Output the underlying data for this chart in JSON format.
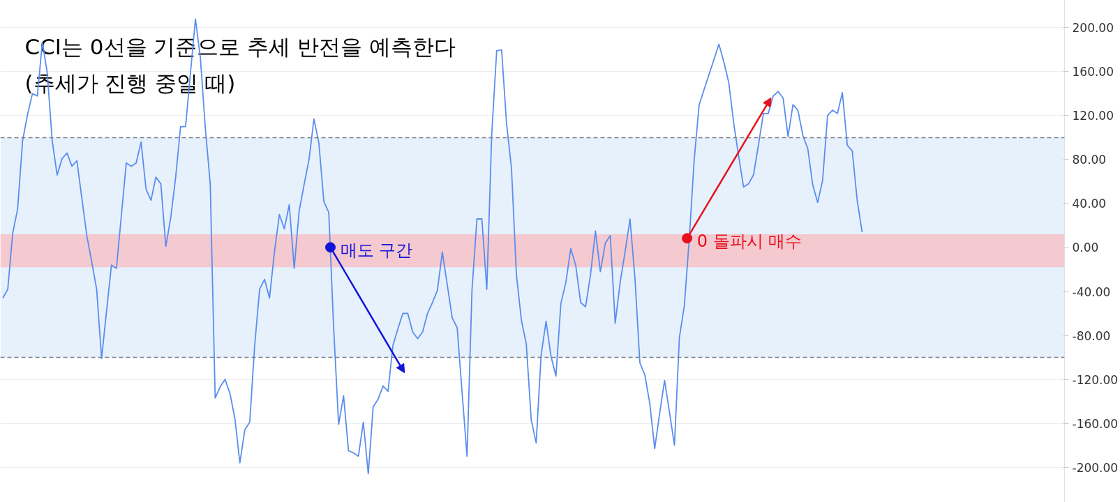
{
  "chart_data": {
    "type": "line",
    "title": "CCI는 0선을 기준으로 추세 반전을 예측한다",
    "subtitle": "(추세가 진행 중일 때)",
    "categories": [
      null,
      null,
      null,
      null,
      null,
      null,
      null,
      null,
      null,
      null,
      null,
      null,
      null,
      null,
      null,
      null,
      null,
      null,
      null,
      null,
      null,
      null,
      null,
      null,
      null,
      null,
      null,
      null,
      null,
      null,
      null,
      null,
      null,
      null,
      null,
      null,
      null,
      null,
      null,
      null,
      null,
      null,
      null,
      null,
      null,
      null,
      null,
      null,
      null,
      null,
      null,
      null,
      null,
      null,
      null,
      null,
      null,
      null,
      null,
      null,
      null,
      null,
      null,
      null,
      null,
      null,
      null,
      null,
      null,
      null,
      null,
      null,
      null,
      null,
      null,
      null,
      null,
      null,
      null,
      null,
      null,
      null,
      null,
      null,
      null,
      null,
      null,
      null,
      null,
      null,
      null,
      null,
      null,
      null,
      null,
      null,
      null,
      null,
      null,
      null,
      null,
      null,
      null,
      null,
      null,
      null,
      null,
      null,
      null,
      null,
      null,
      null,
      null,
      null,
      null,
      null,
      null,
      null,
      null,
      null,
      null,
      null,
      null,
      null,
      null,
      null,
      null,
      null,
      null,
      null,
      null,
      null,
      null,
      null,
      null,
      null,
      null,
      null,
      null,
      null,
      null,
      null,
      null,
      null,
      null,
      null,
      null,
      null,
      null,
      null,
      null,
      null,
      null,
      null,
      null,
      null,
      null,
      null,
      null,
      null,
      null,
      null,
      null,
      null,
      null,
      null,
      null,
      null,
      null,
      null,
      null,
      null,
      null,
      null,
      null
    ],
    "series": [
      {
        "color": "#5b8def",
        "values": [
          -46,
          -38,
          13,
          35,
          97,
          121,
          140,
          138,
          187,
          159,
          97,
          66,
          81,
          86,
          74,
          79,
          45,
          11,
          -13,
          -38,
          -101,
          -58,
          -16,
          -19,
          29,
          77,
          74,
          77,
          96,
          53,
          43,
          64,
          58,
          1,
          27,
          64,
          110,
          110,
          159,
          208,
          173,
          109,
          58,
          -137,
          -127,
          -120,
          -133,
          -156,
          -196,
          -166,
          -159,
          -89,
          -38,
          -29,
          -46,
          -4,
          30,
          17,
          39,
          -19,
          33,
          57,
          80,
          117,
          95,
          42,
          32,
          -74,
          -161,
          -135,
          -185,
          -187,
          -190,
          -159,
          -206,
          -145,
          -138,
          -126,
          -131,
          -89,
          -74,
          -60,
          -60,
          -77,
          -83,
          -77,
          -60,
          -50,
          -39,
          -4,
          -34,
          -64,
          -73,
          -132,
          -190,
          -39,
          26,
          26,
          -38,
          103,
          179,
          180,
          113,
          72,
          -25,
          -66,
          -88,
          -157,
          -178,
          -98,
          -67,
          -99,
          -117,
          -51,
          -32,
          -1,
          -16,
          -50,
          -54,
          -25,
          15,
          -22,
          4,
          11,
          -69,
          -32,
          -4,
          26,
          -28,
          -105,
          -116,
          -142,
          -183,
          -151,
          -121,
          -150,
          -180,
          -82,
          -53,
          8,
          80,
          130,
          null,
          null,
          null,
          185,
          169,
          150,
          113,
          83,
          55,
          58,
          66,
          93,
          122,
          122,
          138,
          142,
          136,
          101,
          130,
          125,
          102,
          90,
          57,
          41,
          61,
          120,
          125,
          122,
          141,
          93,
          88,
          43,
          14
        ]
      }
    ],
    "ylim": [
      -232,
      225
    ],
    "yticks": [
      {
        "value": -200,
        "label": "-200.00"
      },
      {
        "value": -160,
        "label": "-160.00"
      },
      {
        "value": -120,
        "label": "-120.00"
      },
      {
        "value": -80,
        "label": "-80.00"
      },
      {
        "value": -40,
        "label": "-40.00"
      },
      {
        "value": 0,
        "label": "0.00"
      },
      {
        "value": 40,
        "label": "40.00"
      },
      {
        "value": 80,
        "label": "80.00"
      },
      {
        "value": 120,
        "label": "120.00"
      },
      {
        "value": 160,
        "label": "160.00"
      },
      {
        "value": 200,
        "label": "200.00"
      }
    ],
    "tick_labels": "y",
    "grid": "y",
    "bands": [
      {
        "axis": "y",
        "from": -100,
        "to": 100,
        "color": "#e3f0fc"
      },
      {
        "axis": "y",
        "from": -18,
        "to": 12,
        "color": "#f5c4ca"
      }
    ],
    "ref_lines": [
      {
        "axis": "y",
        "value": 100,
        "color": "#787b86",
        "line_style": "dashed"
      },
      {
        "axis": "y",
        "value": -100,
        "color": "#787b86",
        "line_style": "dashed"
      }
    ],
    "annotations": [
      "매도 구간",
      "0 돌파시 매수"
    ]
  }
}
